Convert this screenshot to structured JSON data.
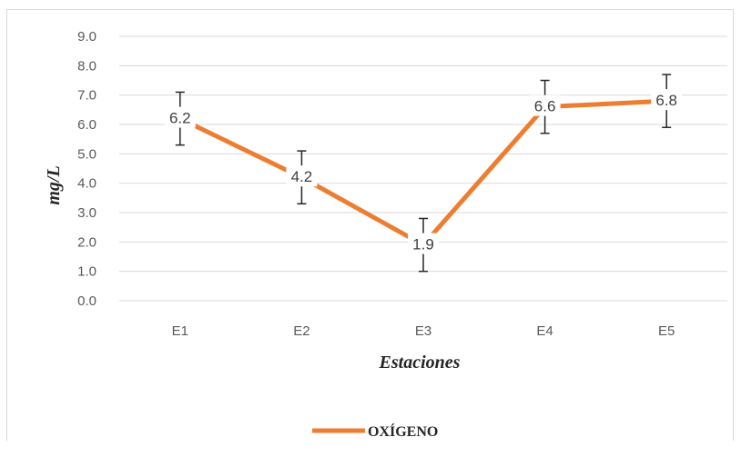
{
  "chart_data": {
    "type": "line",
    "categories": [
      "E1",
      "E2",
      "E3",
      "E4",
      "E5"
    ],
    "series": [
      {
        "name": "OXÍGENO",
        "values": [
          6.2,
          4.2,
          1.9,
          6.6,
          6.8
        ],
        "error_upper": [
          7.1,
          5.1,
          2.8,
          7.5,
          7.7
        ],
        "error_lower": [
          5.3,
          3.3,
          1.0,
          5.7,
          5.9
        ],
        "color": "#ED7D31"
      }
    ],
    "data_labels": [
      "6.2",
      "4.2",
      "1.9",
      "6.6",
      "6.8"
    ],
    "xlabel": "Estaciones",
    "ylabel": "mg/L",
    "ylim": [
      0,
      9
    ],
    "yticks": [
      "0.0",
      "1.0",
      "2.0",
      "3.0",
      "4.0",
      "5.0",
      "6.0",
      "7.0",
      "8.0",
      "9.0"
    ],
    "grid": true,
    "legend_position": "bottom",
    "gridline_color": "#d9d9d9"
  }
}
